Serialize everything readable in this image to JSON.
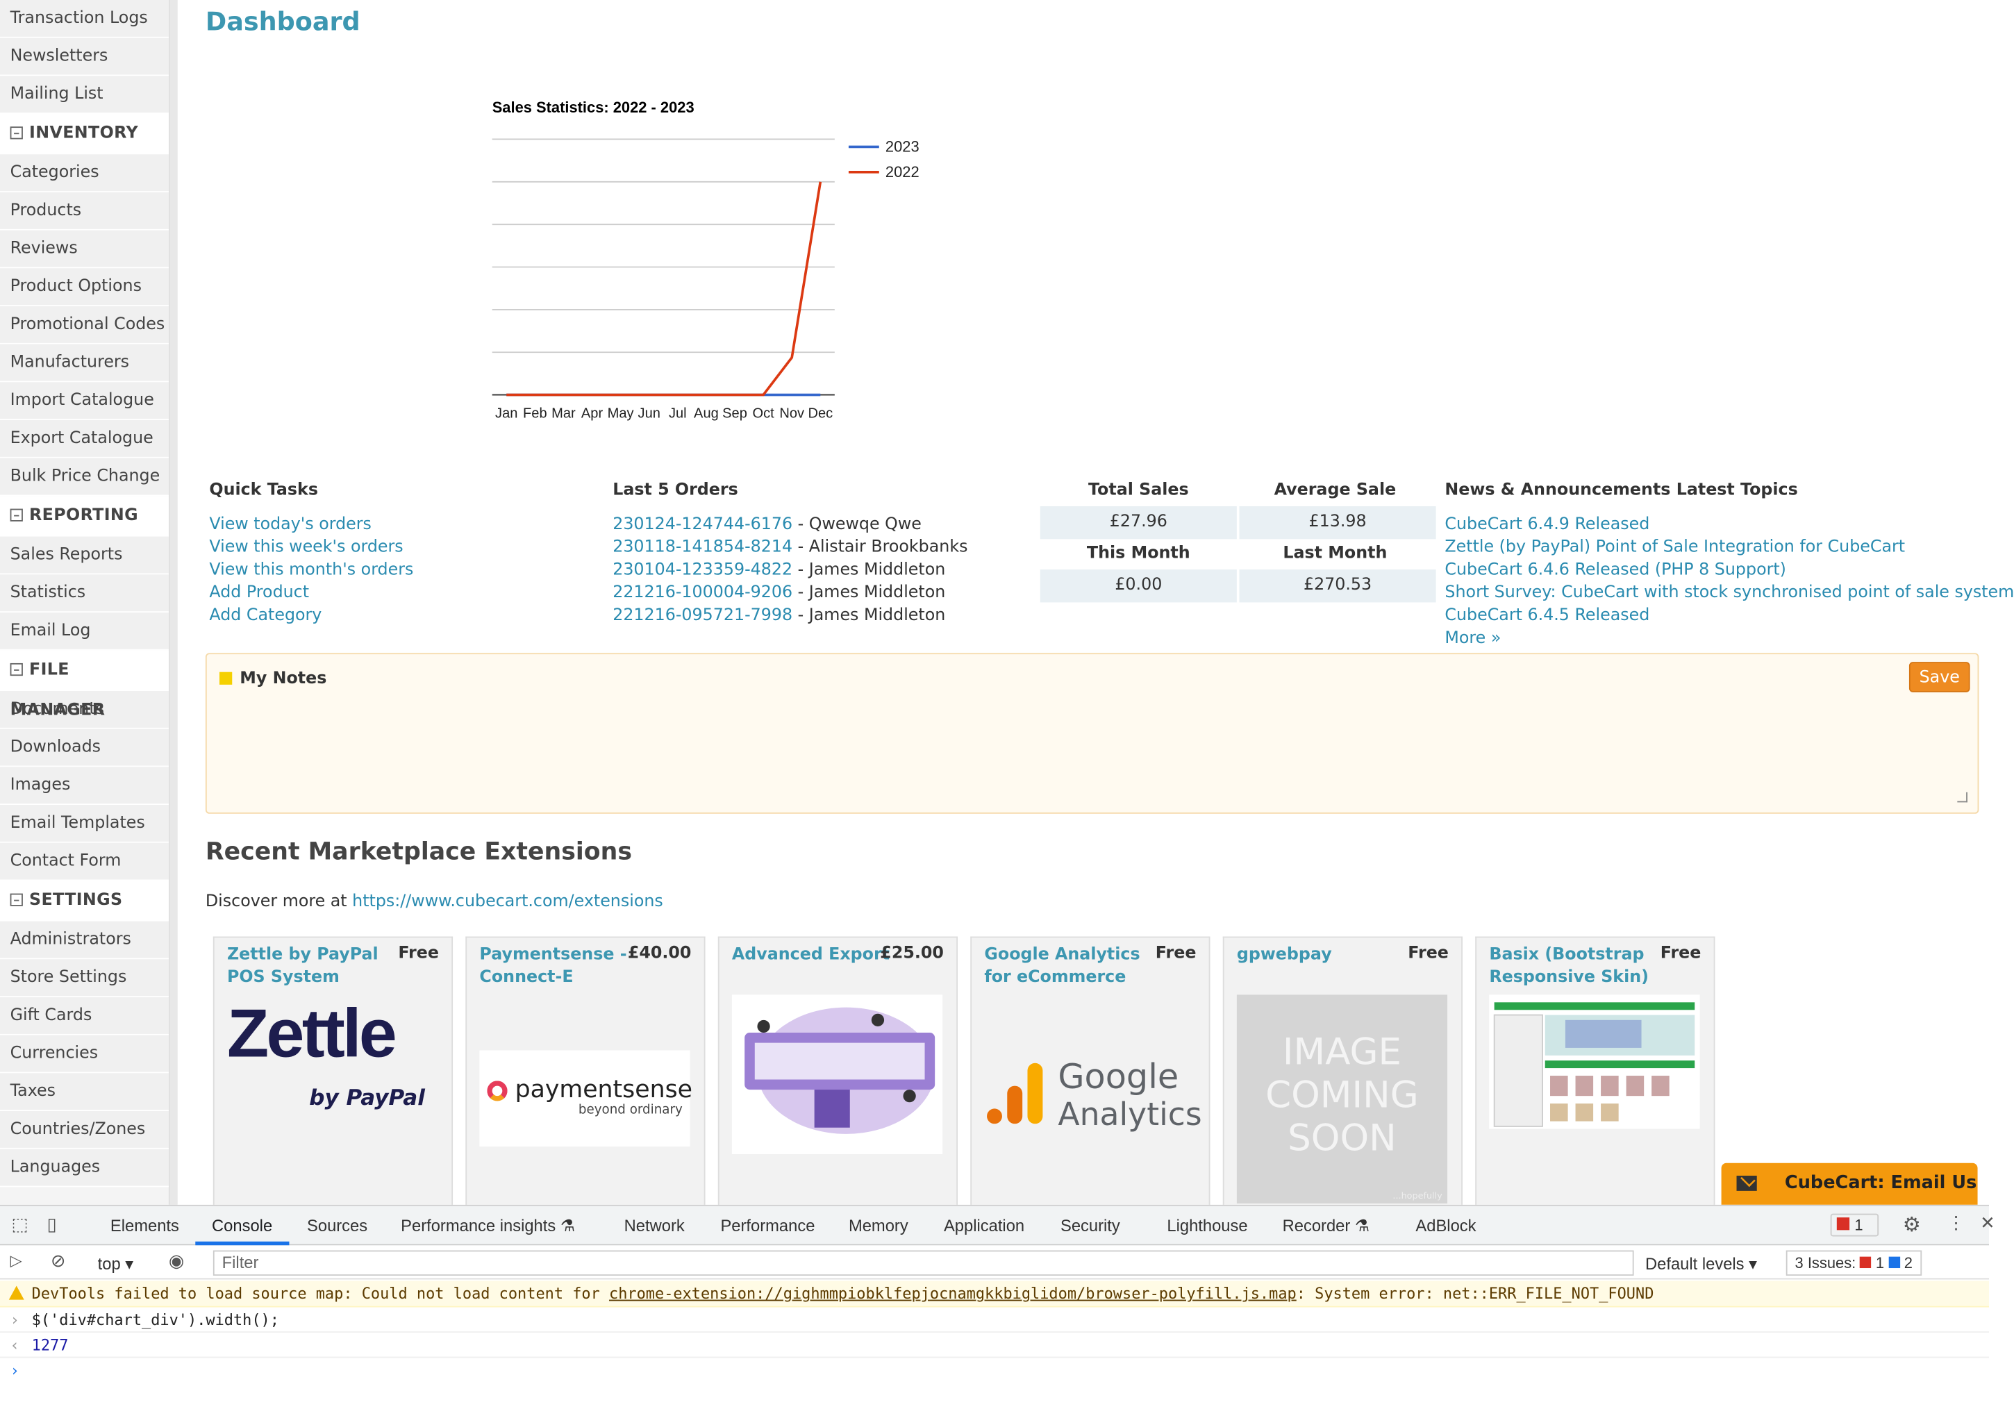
{
  "sidebar": {
    "items_top": [
      "Transaction Logs",
      "Newsletters",
      "Mailing List"
    ],
    "sections": [
      {
        "title": "INVENTORY",
        "items": [
          "Categories",
          "Products",
          "Reviews",
          "Product Options",
          "Promotional Codes",
          "Manufacturers",
          "Import Catalogue",
          "Export Catalogue",
          "Bulk Price Change"
        ]
      },
      {
        "title": "REPORTING",
        "items": [
          "Sales Reports",
          "Statistics",
          "Email Log"
        ]
      },
      {
        "title": "FILE MANAGER",
        "items": [
          "Documents",
          "Downloads",
          "Images",
          "Email Templates",
          "Contact Form"
        ]
      },
      {
        "title": "SETTINGS",
        "items": [
          "Administrators",
          "Store Settings",
          "Gift Cards",
          "Currencies",
          "Taxes",
          "Countries/Zones",
          "Languages"
        ]
      }
    ]
  },
  "page": {
    "title": "Dashboard"
  },
  "chart_data": {
    "type": "line",
    "title": "Sales Statistics: 2022 - 2023",
    "categories": [
      "Jan",
      "Feb",
      "Mar",
      "Apr",
      "May",
      "Jun",
      "Jul",
      "Aug",
      "Sep",
      "Oct",
      "Nov",
      "Dec"
    ],
    "series": [
      {
        "name": "2023",
        "color": "#3366cc",
        "values": [
          0,
          0,
          0,
          0,
          0,
          0,
          0,
          0,
          0,
          0,
          0,
          0
        ]
      },
      {
        "name": "2022",
        "color": "#dc3912",
        "values": [
          0,
          0,
          0,
          0,
          0,
          0,
          0,
          0,
          0,
          0,
          35,
          200
        ]
      }
    ],
    "ylim": [
      0,
      240
    ],
    "grid": true,
    "legend": "right"
  },
  "quick_tasks": {
    "title": "Quick Tasks",
    "links": [
      "View today's orders",
      "View this week's orders",
      "View this month's orders",
      "Add Product",
      "Add Category"
    ]
  },
  "last_orders": {
    "title": "Last 5 Orders",
    "rows": [
      {
        "id": "230124-124744-6176",
        "name": "Qwewqe Qwe"
      },
      {
        "id": "230118-141854-8214",
        "name": "Alistair Brookbanks"
      },
      {
        "id": "230104-123359-4822",
        "name": "James Middleton"
      },
      {
        "id": "221216-100004-9206",
        "name": "James Middleton"
      },
      {
        "id": "221216-095721-7998",
        "name": "James Middleton"
      }
    ]
  },
  "stats": {
    "total_sales_label": "Total Sales",
    "total_sales": "£27.96",
    "average_sale_label": "Average Sale",
    "average_sale": "£13.98",
    "this_month_label": "This Month",
    "this_month": "£0.00",
    "last_month_label": "Last Month",
    "last_month": "£270.53"
  },
  "news": {
    "title": "News & Announcements Latest Topics",
    "links": [
      "CubeCart 6.4.9 Released",
      "Zettle (by PayPal) Point of Sale Integration for CubeCart",
      "CubeCart 6.4.6 Released (PHP 8 Support)",
      "Short Survey: CubeCart with stock synchronised point of sale system",
      "CubeCart 6.4.5 Released",
      "More »"
    ]
  },
  "notes": {
    "title": "My Notes",
    "save": "Save"
  },
  "market": {
    "title": "Recent Marketplace Extensions",
    "discover": "Discover more at ",
    "url": "https://www.cubecart.com/extensions",
    "cards": [
      {
        "name": "Zettle by PayPal POS System",
        "price": "Free",
        "logo_main": "Zettle",
        "logo_sub": "by PayPal"
      },
      {
        "name": "Paymentsense - Connect-E",
        "price": "£40.00",
        "logo_main": "paymentsense",
        "logo_sub": "beyond ordinary"
      },
      {
        "name": "Advanced Export",
        "price": "£25.00"
      },
      {
        "name": "Google Analytics for eCommerce",
        "price": "Free",
        "logo_main": "Google",
        "logo_sub": "Analytics"
      },
      {
        "name": "gpwebpay",
        "price": "Free",
        "placeholder": "IMAGE COMING SOON",
        "note": "...hopefully"
      },
      {
        "name": "Basix (Bootstrap Responsive Skin)",
        "price": "Free"
      }
    ]
  },
  "email_us": "CubeCart: Email Us",
  "devtools": {
    "tabs": [
      "Elements",
      "Console",
      "Sources",
      "Performance insights",
      "Network",
      "Performance",
      "Memory",
      "Application",
      "Security",
      "Lighthouse",
      "Recorder",
      "AdBlock"
    ],
    "errors": "1",
    "context": "top",
    "filter_placeholder": "Filter",
    "levels": "Default levels",
    "issues_label": "3 Issues:",
    "issues_err": "1",
    "issues_info": "2",
    "warning_prefix": "DevTools failed to load source map: Could not load content for ",
    "warning_url": "chrome-extension://gighmmpiobklfepjocnamgkkbiglidom/browser-polyfill.js.map",
    "warning_suffix": ": System error: net::ERR_FILE_NOT_FOUND",
    "command": "$('div#chart_div').width();",
    "result": "1277"
  }
}
